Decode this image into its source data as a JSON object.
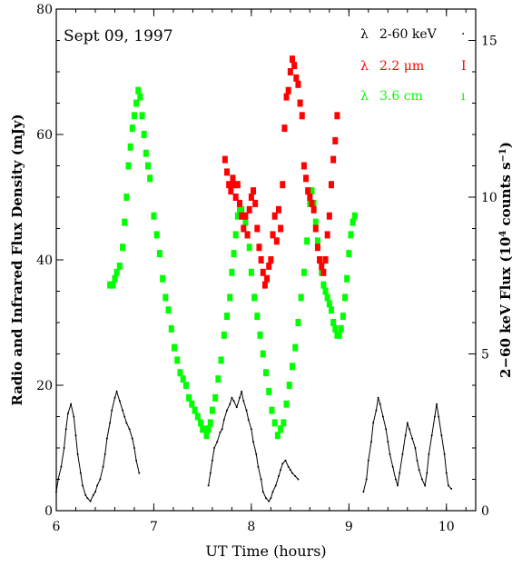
{
  "chart_data": {
    "type": "scatter",
    "date_label": "Sept 09, 1997",
    "xlabel": "UT Time (hours)",
    "ylabel_left": "Radio and Infrared Flux Density (mJy)",
    "ylabel_right_main": "2−60 keV Flux (10",
    "ylabel_right_sup1": "4",
    "ylabel_right_mid": " counts s",
    "ylabel_right_sup2": "−1",
    "ylabel_right_end": ")",
    "xlim": [
      6,
      10.3
    ],
    "ylim_left": [
      0,
      80
    ],
    "ylim_right": [
      0,
      16
    ],
    "x_ticks": [
      "6",
      "7",
      "8",
      "9",
      "10"
    ],
    "y_ticks_left": [
      "0",
      "20",
      "40",
      "60",
      "80"
    ],
    "y_ticks_right": [
      "0",
      "5",
      "10",
      "15"
    ],
    "legend": [
      {
        "symbol": "λ",
        "label": "2-60 keV",
        "marker": "·",
        "color": "#000000"
      },
      {
        "symbol": "λ",
        "label_main": "2.2 ",
        "label_unit": "μm",
        "marker": "I",
        "color": "#ff0000"
      },
      {
        "symbol": "λ",
        "label": "3.6 cm",
        "marker": "ı",
        "color": "#00ff00"
      }
    ],
    "series": [
      {
        "name": "2-60 keV",
        "axis": "right",
        "color": "#000000",
        "x": [
          6.0,
          6.02,
          6.05,
          6.08,
          6.1,
          6.12,
          6.15,
          6.18,
          6.2,
          6.22,
          6.25,
          6.27,
          6.3,
          6.32,
          6.35,
          6.38,
          6.4,
          6.42,
          6.45,
          6.48,
          6.5,
          6.52,
          6.55,
          6.57,
          6.6,
          6.62,
          6.65,
          6.68,
          6.7,
          6.72,
          6.75,
          6.78,
          6.8,
          6.82,
          6.85
        ],
        "y": [
          0.6,
          1.0,
          1.4,
          2.0,
          2.6,
          3.1,
          3.4,
          3.0,
          2.4,
          1.8,
          1.2,
          0.8,
          0.5,
          0.4,
          0.3,
          0.5,
          0.6,
          0.8,
          1.0,
          1.4,
          1.8,
          2.3,
          2.8,
          3.2,
          3.6,
          3.8,
          3.5,
          3.2,
          3.0,
          2.8,
          2.6,
          2.3,
          2.0,
          1.6,
          1.2
        ]
      },
      {
        "name": "2-60 keV (2)",
        "axis": "right",
        "color": "#000000",
        "x": [
          7.56,
          7.58,
          7.6,
          7.62,
          7.65,
          7.68,
          7.7,
          7.72,
          7.75,
          7.78,
          7.8,
          7.82,
          7.85,
          7.88,
          7.9,
          7.92,
          7.95,
          7.97,
          8.0,
          8.02,
          8.05,
          8.07,
          8.1,
          8.12,
          8.15,
          8.18,
          8.2,
          8.22,
          8.25,
          8.28,
          8.3,
          8.32,
          8.35,
          8.38,
          8.4,
          8.42,
          8.45,
          8.48
        ],
        "y": [
          0.8,
          1.2,
          1.6,
          2.0,
          2.2,
          2.5,
          2.6,
          2.9,
          3.2,
          3.4,
          3.6,
          3.5,
          3.3,
          3.6,
          3.8,
          3.5,
          3.2,
          2.9,
          2.6,
          2.2,
          1.8,
          1.4,
          1.0,
          0.6,
          0.4,
          0.3,
          0.4,
          0.6,
          0.8,
          1.1,
          1.3,
          1.5,
          1.6,
          1.4,
          1.3,
          1.2,
          1.1,
          1.0
        ]
      },
      {
        "name": "2-60 keV (3)",
        "axis": "right",
        "color": "#000000",
        "x": [
          9.15,
          9.18,
          9.2,
          9.23,
          9.25,
          9.28,
          9.3,
          9.32,
          9.35,
          9.38,
          9.4,
          9.42,
          9.45,
          9.48,
          9.5,
          9.52,
          9.55,
          9.58,
          9.6,
          9.62,
          9.65,
          9.68,
          9.7,
          9.72,
          9.75,
          9.78,
          9.8,
          9.82,
          9.85,
          9.88,
          9.9,
          9.92,
          9.95,
          9.98,
          10.0,
          10.02,
          10.05
        ],
        "y": [
          0.6,
          1.0,
          1.6,
          2.2,
          2.8,
          3.2,
          3.6,
          3.4,
          3.0,
          2.6,
          2.2,
          1.8,
          1.4,
          1.0,
          0.8,
          1.2,
          1.8,
          2.4,
          2.8,
          2.6,
          2.3,
          2.0,
          1.6,
          1.3,
          1.0,
          0.8,
          1.2,
          1.8,
          2.4,
          3.0,
          3.4,
          3.0,
          2.4,
          1.8,
          1.2,
          0.8,
          0.7
        ]
      },
      {
        "name": "3.6 cm",
        "axis": "left",
        "color": "#00ff00",
        "x": [
          6.55,
          6.58,
          6.6,
          6.62,
          6.65,
          6.68,
          6.7,
          6.72,
          6.74,
          6.76,
          6.78,
          6.8,
          6.82,
          6.84,
          6.86,
          6.88,
          6.9,
          6.92,
          6.94,
          6.96,
          7.0,
          7.03,
          7.06,
          7.09,
          7.12,
          7.15,
          7.18,
          7.21,
          7.24,
          7.27,
          7.3,
          7.33,
          7.36,
          7.39,
          7.42,
          7.45,
          7.48,
          7.5,
          7.52,
          7.54,
          7.56,
          7.58,
          7.6,
          7.63,
          7.66,
          7.69,
          7.72,
          7.75,
          7.78,
          7.8,
          7.82,
          7.84,
          7.86,
          7.88,
          7.9,
          7.92,
          7.94,
          7.96,
          7.98,
          8.0,
          8.03,
          8.06,
          8.09,
          8.12,
          8.15,
          8.18,
          8.21,
          8.24,
          8.27,
          8.3,
          8.33,
          8.36,
          8.39,
          8.42,
          8.45,
          8.48,
          8.51,
          8.54,
          8.57,
          8.6,
          8.62,
          8.64,
          8.66,
          8.68,
          8.7,
          8.72,
          8.74,
          8.76,
          8.78,
          8.8,
          8.82,
          8.84,
          8.86,
          8.88,
          8.9,
          8.92,
          8.94,
          8.96,
          8.98,
          9.0,
          9.02,
          9.04,
          9.06
        ],
        "y": [
          36,
          36,
          37,
          38,
          39,
          42,
          46,
          50,
          55,
          58,
          61,
          63,
          65,
          67,
          66,
          63,
          60,
          57,
          55,
          53,
          47,
          44,
          41,
          37,
          34,
          32,
          29,
          26,
          24,
          22,
          21,
          20,
          18,
          17,
          16,
          15,
          14,
          13,
          13,
          12,
          13,
          14,
          16,
          18,
          21,
          24,
          28,
          31,
          34,
          38,
          41,
          44,
          47,
          48,
          48,
          47,
          46,
          44,
          42,
          38,
          34,
          31,
          28,
          25,
          22,
          19,
          16,
          14,
          12,
          13,
          14,
          17,
          20,
          23,
          26,
          30,
          34,
          38,
          43,
          49,
          51,
          49,
          46,
          43,
          40,
          38,
          36,
          35,
          34,
          33,
          32,
          30,
          29,
          28,
          28,
          29,
          31,
          34,
          37,
          41,
          44,
          46,
          47
        ]
      },
      {
        "name": "2.2 μm",
        "axis": "left",
        "color": "#ff0000",
        "x": [
          7.73,
          7.75,
          7.77,
          7.79,
          7.81,
          7.82,
          7.84,
          7.86,
          7.88,
          7.9,
          7.92,
          7.94,
          7.96,
          7.98,
          8.0,
          8.02,
          8.04,
          8.06,
          8.08,
          8.1,
          8.12,
          8.14,
          8.16,
          8.18,
          8.2,
          8.22,
          8.24,
          8.26,
          8.28,
          8.3,
          8.32,
          8.34,
          8.36,
          8.38,
          8.4,
          8.42,
          8.44,
          8.46,
          8.48,
          8.5,
          8.52,
          8.54,
          8.56,
          8.58,
          8.6,
          8.62,
          8.64,
          8.66,
          8.68,
          8.7,
          8.72,
          8.74,
          8.76,
          8.78,
          8.8,
          8.82,
          8.84,
          8.86,
          8.88
        ],
        "y": [
          56,
          54,
          52,
          51,
          53,
          52,
          50,
          52,
          49,
          47,
          45,
          47,
          44,
          48,
          50,
          51,
          49,
          45,
          42,
          40,
          38,
          36,
          37,
          39,
          40,
          44,
          47,
          43,
          48,
          45,
          52,
          61,
          66,
          67,
          70,
          72,
          71,
          69,
          68,
          65,
          63,
          55,
          53,
          51,
          50,
          49,
          48,
          45,
          42,
          40,
          39,
          38,
          40,
          44,
          47,
          52,
          56,
          59,
          63
        ]
      }
    ]
  }
}
